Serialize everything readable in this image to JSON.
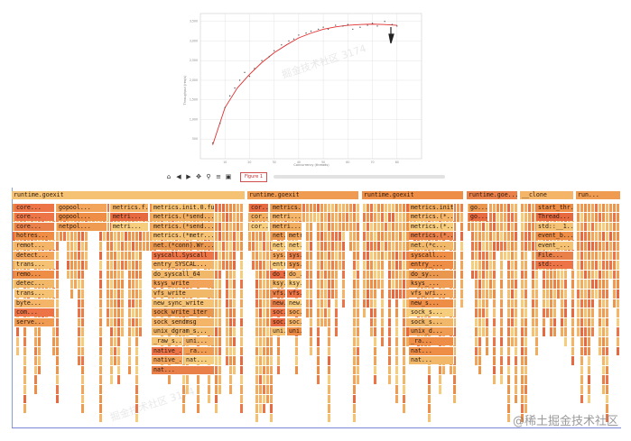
{
  "chart": {
    "xlabel": "Concurrency (threads)",
    "ylabel": "Throughput (req/s)",
    "ytick_labels": [
      "3,500",
      "3,000",
      "2,500",
      "2,000",
      "1,500",
      "1,000",
      "500"
    ],
    "xtick_labels": [
      "10",
      "20",
      "30",
      "40",
      "50",
      "60",
      "70",
      "80"
    ]
  },
  "chart_data": {
    "type": "scatter",
    "title": "",
    "xlabel": "Concurrency (threads)",
    "ylabel": "Throughput (req/s)",
    "xlim": [
      0,
      90
    ],
    "ylim": [
      0,
      3700
    ],
    "points": [
      [
        5,
        400
      ],
      [
        8,
        900
      ],
      [
        10,
        1300
      ],
      [
        12,
        1600
      ],
      [
        14,
        1800
      ],
      [
        16,
        2000
      ],
      [
        18,
        2200
      ],
      [
        20,
        2100
      ],
      [
        22,
        2300
      ],
      [
        25,
        2500
      ],
      [
        28,
        2600
      ],
      [
        30,
        2750
      ],
      [
        33,
        2900
      ],
      [
        36,
        3000
      ],
      [
        38,
        3050
      ],
      [
        40,
        3150
      ],
      [
        43,
        3200
      ],
      [
        45,
        3250
      ],
      [
        48,
        3300
      ],
      [
        50,
        3350
      ],
      [
        52,
        3300
      ],
      [
        55,
        3400
      ],
      [
        58,
        3380
      ],
      [
        60,
        3420
      ],
      [
        62,
        3300
      ],
      [
        65,
        3350
      ],
      [
        68,
        3400
      ],
      [
        70,
        3450
      ],
      [
        72,
        3380
      ],
      [
        75,
        3500
      ],
      [
        78,
        3420
      ],
      [
        80,
        3380
      ]
    ],
    "fit": [
      [
        5,
        350
      ],
      [
        10,
        1300
      ],
      [
        15,
        1800
      ],
      [
        20,
        2150
      ],
      [
        25,
        2450
      ],
      [
        30,
        2700
      ],
      [
        35,
        2900
      ],
      [
        40,
        3080
      ],
      [
        45,
        3200
      ],
      [
        50,
        3300
      ],
      [
        55,
        3360
      ],
      [
        60,
        3400
      ],
      [
        65,
        3420
      ],
      [
        70,
        3430
      ],
      [
        75,
        3420
      ],
      [
        80,
        3400
      ]
    ],
    "colors": {
      "points": "#555555",
      "fit": "#e03030",
      "grid": "#dddddd"
    }
  },
  "toolbar": {
    "icons": [
      "home-icon",
      "back-icon",
      "forward-icon",
      "move-icon",
      "zoom-icon",
      "configure-icon",
      "save-icon"
    ],
    "glyphs": [
      "⌂",
      "◀",
      "▶",
      "✥",
      "⚲",
      "≡",
      "▣"
    ],
    "tab_label": "Figure 1"
  },
  "flame": {
    "columns": [
      {
        "root": "runtime.goexit",
        "frames": [
          [
            "core...",
            "gopool...",
            "metrics.f...",
            "metrics.init.0.fu..."
          ],
          [
            "core...",
            "gopool...",
            "metri...",
            "metrics.(*send..."
          ],
          [
            "core...",
            "netpol...",
            "metri...",
            "metrics.(*send..."
          ],
          [
            "hotres...",
            "",
            "",
            "metrics.(*metr..."
          ],
          [
            "remot...",
            "",
            "",
            "net.(*conn).Wr..."
          ],
          [
            "detect...",
            "",
            "",
            "syscall.Syscall"
          ],
          [
            "trans...",
            "",
            "",
            "entry_SYSCAL..."
          ],
          [
            "remo...",
            "",
            "",
            "do_syscall_64"
          ],
          [
            "detec...",
            "",
            "",
            "ksys_write"
          ],
          [
            "trans...",
            "",
            "",
            "vfs_write"
          ],
          [
            "byte...",
            "",
            "",
            "new_sync_write"
          ],
          [
            "com...",
            "",
            "",
            "sock_write_iter"
          ],
          [
            "serve...",
            "",
            "",
            "sock_sendmsg"
          ],
          [
            "",
            "",
            "",
            "unix_dgram_s..."
          ],
          [
            "",
            "",
            "",
            "_raw_s...|uni..."
          ],
          [
            "",
            "",
            "",
            "native_...|_ra..."
          ],
          [
            "",
            "",
            "",
            "native_...|nat..."
          ],
          [
            "",
            "",
            "",
            "nat..."
          ]
        ]
      },
      {
        "root": "runtime.goexit",
        "frames": [
          [
            "cor...",
            "metrics.i..."
          ],
          [
            "cor...",
            "metri..."
          ],
          [
            "cor...",
            "metri..."
          ],
          [
            "",
            "net...|metri..."
          ],
          [
            "",
            "net...|net..."
          ],
          [
            "",
            "sys...|sys..."
          ],
          [
            "",
            "entr...|sys..."
          ],
          [
            "",
            "do_s...|do_..."
          ],
          [
            "",
            "ksy...|ksy..."
          ],
          [
            "",
            "vfs...|vfs..."
          ],
          [
            "",
            "new...|new..."
          ],
          [
            "",
            "soc...|soc..."
          ],
          [
            "",
            "soc...|soc..."
          ],
          [
            "",
            "uni...|uni..."
          ]
        ]
      },
      {
        "root": "runtime.goexit",
        "frames": [
          [
            "metrics.init..."
          ],
          [
            "metrics.(*..."
          ],
          [
            "metrics.(*..."
          ],
          [
            "metrics.(*..."
          ],
          [
            "net.(*c..."
          ],
          [
            "syscall..."
          ],
          [
            "entry_..."
          ],
          [
            "do_sy..."
          ],
          [
            "ksys_..."
          ],
          [
            "vfs_wri..."
          ],
          [
            "new_s..."
          ],
          [
            "sock_s..."
          ],
          [
            "sock_s..."
          ],
          [
            "unix_d..."
          ],
          [
            "_ra..."
          ],
          [
            "nat..."
          ],
          [
            "nat..."
          ]
        ]
      },
      {
        "root": "runtime.goe...",
        "frames": [
          [
            "go..."
          ],
          [
            "go..."
          ]
        ]
      },
      {
        "root": "__clone",
        "frames": [
          [
            "start_thr..."
          ],
          [
            "Thread..."
          ],
          [
            "std::__1..."
          ],
          [
            "event_b..."
          ],
          [
            "event_..."
          ],
          [
            "File..."
          ],
          [
            "std:..."
          ]
        ]
      },
      {
        "root": "run...",
        "frames": []
      }
    ],
    "colors": [
      "#ee8d45",
      "#f2a55a",
      "#f4b568",
      "#ef9b52",
      "#e9804a",
      "#f5c273",
      "#ec7446",
      "#f0ad60",
      "#e9964e",
      "#f6cc7d",
      "#e7693f",
      "#f1b86a"
    ]
  },
  "watermark": "@稀土掘金技术社区",
  "bg_watermark": "掘金技术社区 3174"
}
